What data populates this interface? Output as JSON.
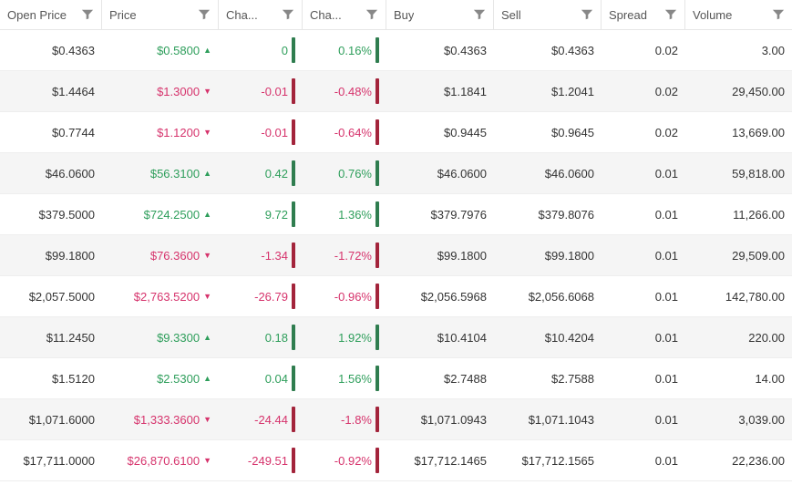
{
  "colors": {
    "up_text": "#2e9e5b",
    "down_text": "#d6336c",
    "up_bar": "#2f7d4f",
    "down_bar": "#a3243b",
    "header_text": "#555555",
    "row_alt_bg": "#f5f5f5",
    "border": "#e6e6e6",
    "funnel": "#888888"
  },
  "columns": [
    {
      "label": "Open Price"
    },
    {
      "label": "Price"
    },
    {
      "label": "Cha..."
    },
    {
      "label": "Cha..."
    },
    {
      "label": "Buy"
    },
    {
      "label": "Sell"
    },
    {
      "label": "Spread"
    },
    {
      "label": "Volume"
    }
  ],
  "rows": [
    {
      "open": "$0.4363",
      "price": "$0.5800",
      "dir": "up",
      "chg": "0",
      "chgp": "0.16%",
      "buy": "$0.4363",
      "sell": "$0.4363",
      "spread": "0.02",
      "vol": "3.00"
    },
    {
      "open": "$1.4464",
      "price": "$1.3000",
      "dir": "down",
      "chg": "-0.01",
      "chgp": "-0.48%",
      "buy": "$1.1841",
      "sell": "$1.2041",
      "spread": "0.02",
      "vol": "29,450.00"
    },
    {
      "open": "$0.7744",
      "price": "$1.1200",
      "dir": "down",
      "chg": "-0.01",
      "chgp": "-0.64%",
      "buy": "$0.9445",
      "sell": "$0.9645",
      "spread": "0.02",
      "vol": "13,669.00"
    },
    {
      "open": "$46.0600",
      "price": "$56.3100",
      "dir": "up",
      "chg": "0.42",
      "chgp": "0.76%",
      "buy": "$46.0600",
      "sell": "$46.0600",
      "spread": "0.01",
      "vol": "59,818.00"
    },
    {
      "open": "$379.5000",
      "price": "$724.2500",
      "dir": "up",
      "chg": "9.72",
      "chgp": "1.36%",
      "buy": "$379.7976",
      "sell": "$379.8076",
      "spread": "0.01",
      "vol": "11,266.00"
    },
    {
      "open": "$99.1800",
      "price": "$76.3600",
      "dir": "down",
      "chg": "-1.34",
      "chgp": "-1.72%",
      "buy": "$99.1800",
      "sell": "$99.1800",
      "spread": "0.01",
      "vol": "29,509.00"
    },
    {
      "open": "$2,057.5000",
      "price": "$2,763.5200",
      "dir": "down",
      "chg": "-26.79",
      "chgp": "-0.96%",
      "buy": "$2,056.5968",
      "sell": "$2,056.6068",
      "spread": "0.01",
      "vol": "142,780.00"
    },
    {
      "open": "$11.2450",
      "price": "$9.3300",
      "dir": "up",
      "chg": "0.18",
      "chgp": "1.92%",
      "buy": "$10.4104",
      "sell": "$10.4204",
      "spread": "0.01",
      "vol": "220.00"
    },
    {
      "open": "$1.5120",
      "price": "$2.5300",
      "dir": "up",
      "chg": "0.04",
      "chgp": "1.56%",
      "buy": "$2.7488",
      "sell": "$2.7588",
      "spread": "0.01",
      "vol": "14.00"
    },
    {
      "open": "$1,071.6000",
      "price": "$1,333.3600",
      "dir": "down",
      "chg": "-24.44",
      "chgp": "-1.8%",
      "buy": "$1,071.0943",
      "sell": "$1,071.1043",
      "spread": "0.01",
      "vol": "3,039.00"
    },
    {
      "open": "$17,711.0000",
      "price": "$26,870.6100",
      "dir": "down",
      "chg": "-249.51",
      "chgp": "-0.92%",
      "buy": "$17,712.1465",
      "sell": "$17,712.1565",
      "spread": "0.01",
      "vol": "22,236.00"
    }
  ]
}
